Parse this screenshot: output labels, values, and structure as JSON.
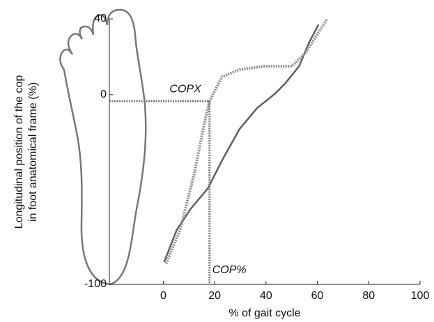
{
  "chart_data": {
    "type": "line",
    "xlabel": "% of gait cycle",
    "ylabel": [
      "Longitudinal position of the cop",
      "in foot anatomical frame (%)"
    ],
    "xlim": [
      -21,
      100
    ],
    "xticks": [
      0,
      20,
      40,
      60,
      80,
      100
    ],
    "ylim": [
      -100,
      40
    ],
    "yticks": [
      -100,
      0,
      40
    ],
    "series": [
      {
        "color": "#5f5f5f",
        "dash": false,
        "x": [
          0.3,
          5.2,
          10.6,
          17.4,
          22.9,
          29.7,
          36.5,
          43.3,
          47.4,
          52.9,
          56.9,
          60.5
        ],
        "values": [
          -88.3,
          -71.4,
          -60.3,
          -49.3,
          -34.6,
          -18.1,
          -7.1,
          0.3,
          5.8,
          15,
          27.9,
          37
        ]
      },
      {
        "color": "#8f8f8f",
        "dash": true,
        "x": [
          1.1,
          6.5,
          12,
          16.1,
          18,
          22.9,
          29.7,
          39.2,
          50.1,
          55.6,
          63.8
        ],
        "values": [
          -89,
          -71.4,
          -42,
          -14.4,
          -3.4,
          9.5,
          13.2,
          15,
          15,
          22.4,
          40
        ]
      }
    ],
    "annotations": [
      {
        "text": "COPX",
        "x": 18,
        "y": -3.4,
        "direction": "horizontal"
      },
      {
        "text": "COP%",
        "x": 18,
        "y": -3.4,
        "direction": "vertical"
      }
    ]
  }
}
